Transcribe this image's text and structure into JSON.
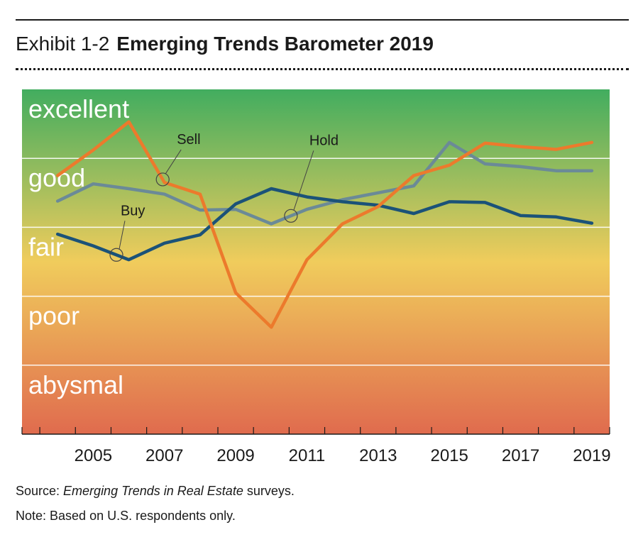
{
  "header": {
    "exhibit": "Exhibit 1-2",
    "title": "Emerging Trends Barometer 2019"
  },
  "footer": {
    "source_prefix": "Source: ",
    "source_title": "Emerging Trends in Real Estate",
    "source_suffix": " surveys.",
    "note": "Note: Based on U.S. respondents only."
  },
  "colors": {
    "buy": "#1b5278",
    "sell": "#ec7a2c",
    "hold": "#6b8a97",
    "band_top": "#42ad5f",
    "band_mid": "#f0cc5c",
    "band_bottom": "#e06b4e"
  },
  "chart_data": {
    "type": "line",
    "title": "Emerging Trends Barometer 2019",
    "xlabel": "",
    "ylabel": "",
    "x": [
      2004,
      2005,
      2006,
      2007,
      2008,
      2009,
      2010,
      2011,
      2012,
      2013,
      2014,
      2015,
      2016,
      2017,
      2018,
      2019
    ],
    "xlim": [
      2003.0,
      2019.5
    ],
    "ylim": [
      0,
      5
    ],
    "xticks": [
      2005,
      2007,
      2009,
      2011,
      2013,
      2015,
      2017,
      2019
    ],
    "xtick_labels": [
      "2005",
      "2007",
      "2009",
      "2011",
      "2013",
      "2015",
      "2017",
      "2019"
    ],
    "bands": [
      {
        "label": "abysmal",
        "from": 0,
        "to": 1
      },
      {
        "label": "poor",
        "from": 1,
        "to": 2
      },
      {
        "label": "fair",
        "from": 2,
        "to": 3
      },
      {
        "label": "good",
        "from": 3,
        "to": 4
      },
      {
        "label": "excellent",
        "from": 4,
        "to": 5
      }
    ],
    "series": [
      {
        "name": "Buy",
        "key": "buy",
        "values": [
          2.9,
          2.73,
          2.53,
          2.77,
          2.89,
          3.34,
          3.56,
          3.44,
          3.37,
          3.32,
          3.2,
          3.37,
          3.36,
          3.17,
          3.15,
          3.06
        ]
      },
      {
        "name": "Sell",
        "key": "sell",
        "values": [
          3.75,
          4.12,
          4.53,
          3.65,
          3.48,
          2.05,
          1.55,
          2.53,
          3.05,
          3.3,
          3.75,
          3.9,
          4.22,
          4.17,
          4.13,
          4.23
        ]
      },
      {
        "name": "Hold",
        "key": "hold",
        "values": [
          3.38,
          3.63,
          3.56,
          3.48,
          3.25,
          3.26,
          3.05,
          3.26,
          3.4,
          3.5,
          3.6,
          4.23,
          3.92,
          3.88,
          3.82,
          3.82
        ]
      }
    ],
    "annotations": [
      {
        "text": "Sell",
        "series": "sell",
        "x": 2006.95
      },
      {
        "text": "Hold",
        "series": "hold",
        "x": 2010.55
      },
      {
        "text": "Buy",
        "series": "buy",
        "x": 2005.65
      }
    ]
  }
}
